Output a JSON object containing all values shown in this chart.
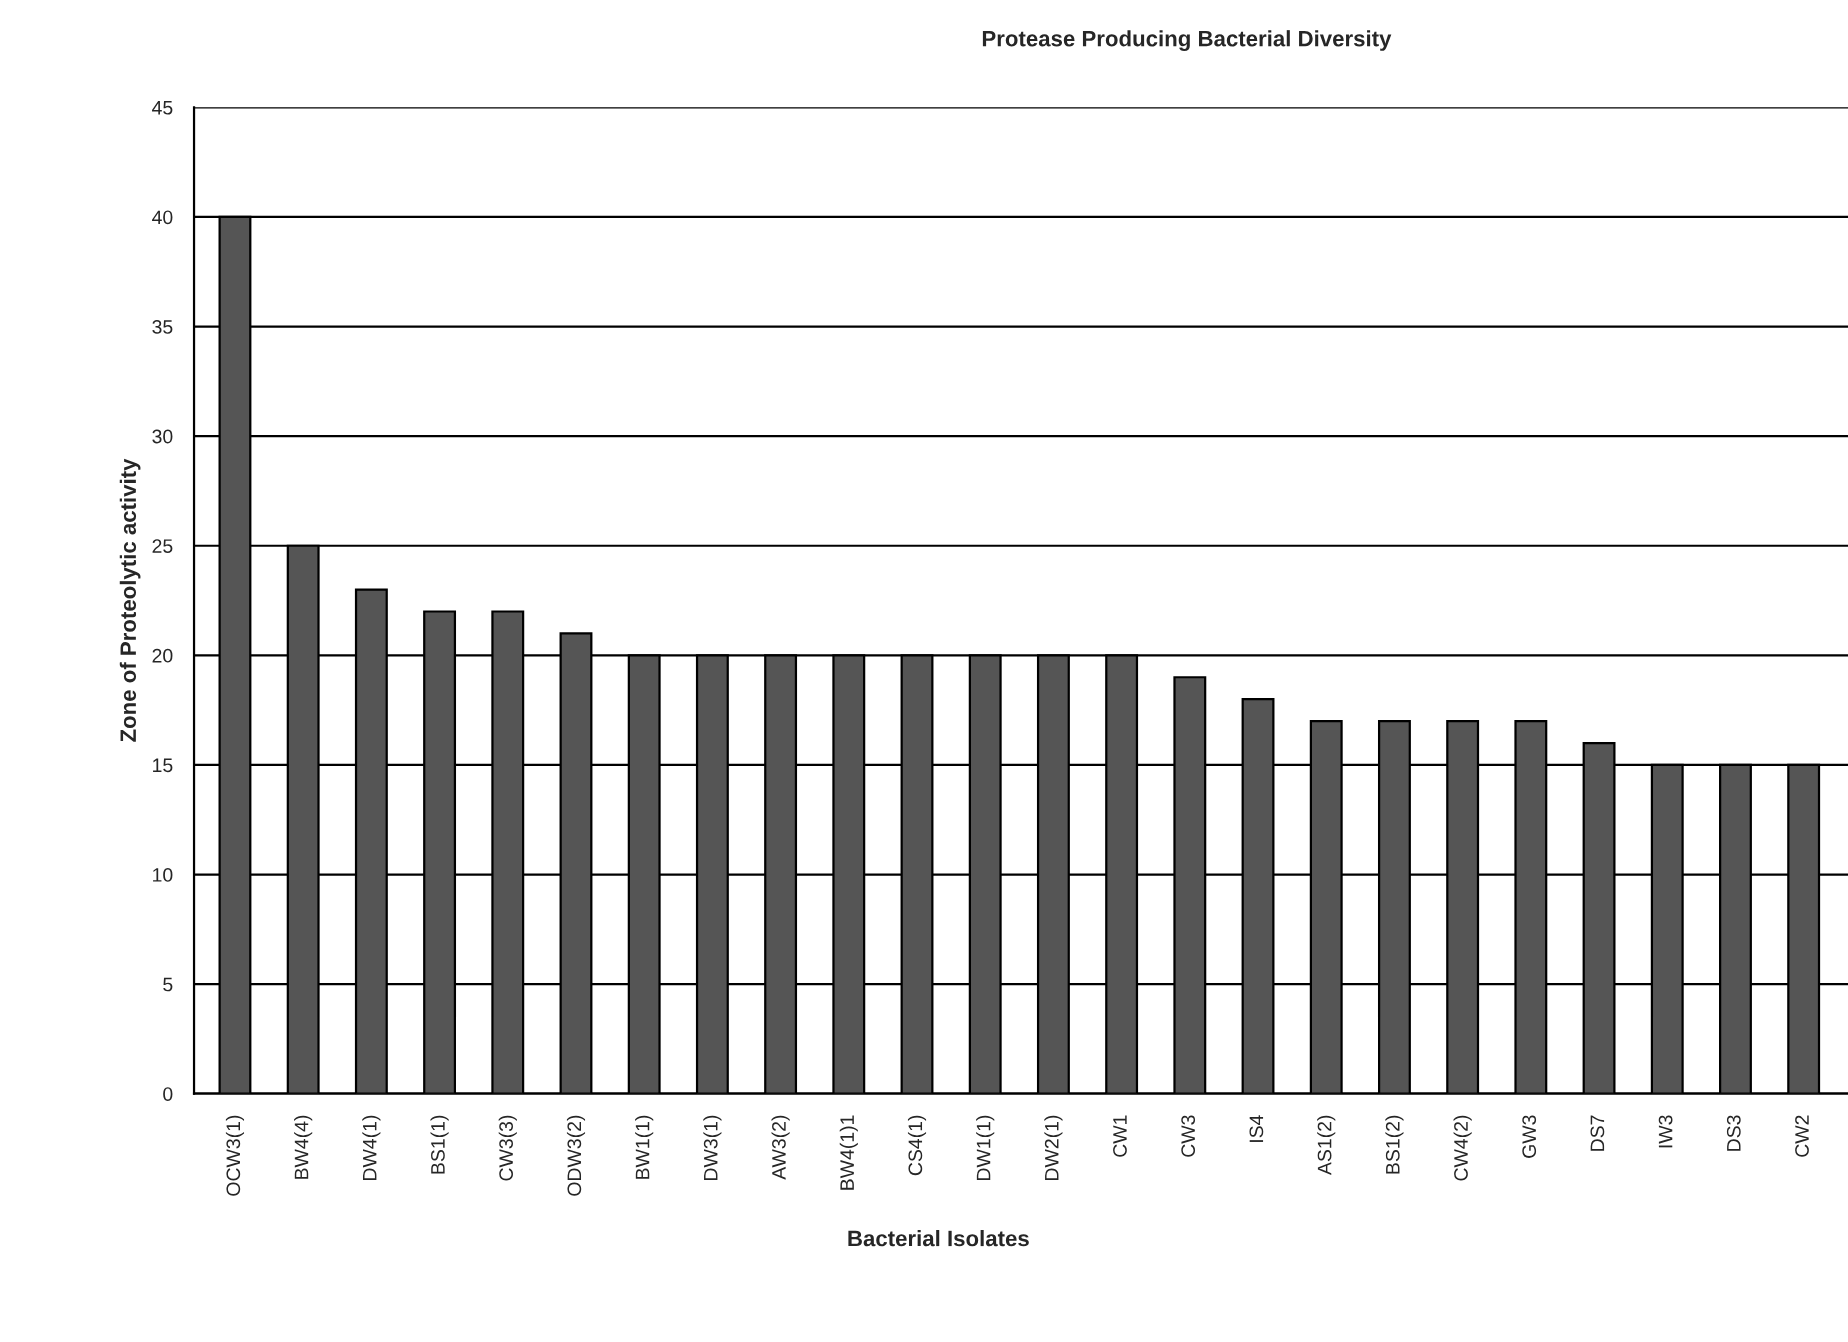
{
  "chart_data": {
    "type": "bar",
    "title": "Protease Producing Bacterial Diversity",
    "xlabel": "Bacterial Isolates",
    "ylabel": "Zone of Proteolytic activity",
    "categories": [
      "OCW3(1)",
      "BW4(4)",
      "DW4(1)",
      "BS1(1)",
      "CW3(3)",
      "ODW3(2)",
      "BW1(1)",
      "DW3(1)",
      "AW3(2)",
      "BW4(1)1",
      "CS4(1)",
      "DW1(1)",
      "DW2(1)",
      "CW1",
      "CW3",
      "IS4",
      "AS1(2)",
      "BS1(2)",
      "CW4(2)",
      "GW3",
      "DS7",
      "IW3",
      "DS3",
      "CW2"
    ],
    "values": [
      40,
      25,
      23,
      22,
      22,
      21,
      20,
      20,
      20,
      20,
      20,
      20,
      20,
      20,
      19,
      18,
      17,
      17,
      17,
      17,
      16,
      15,
      15,
      15
    ],
    "color": "#555555",
    "ylim": [
      0,
      45
    ],
    "yticks": [
      0,
      5,
      10,
      15,
      20,
      25,
      30,
      35,
      40,
      45
    ],
    "grid": "y",
    "legend": false
  }
}
